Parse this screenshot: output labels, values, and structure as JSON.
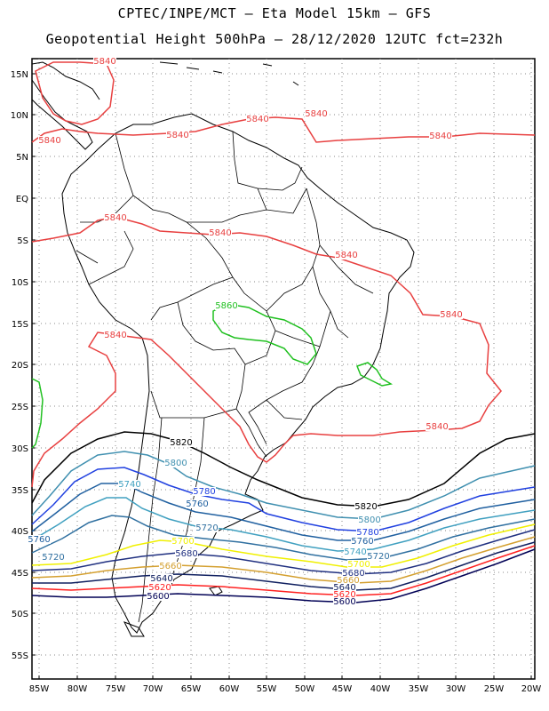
{
  "header": {
    "line1": "CPTEC/INPE/MCT –  Eta Model 15km – GFS",
    "line2": "Geopotential Height 500hPa – 28/12/2020 12UTC fct=232h"
  },
  "lat_labels": [
    "15N",
    "10N",
    "5N",
    "EQ",
    "5S",
    "10S",
    "15S",
    "20S",
    "25S",
    "30S",
    "35S",
    "40S",
    "45S",
    "50S",
    "55S"
  ],
  "lon_labels": [
    "85W",
    "80W",
    "75W",
    "70W",
    "65W",
    "60W",
    "55W",
    "50W",
    "45W",
    "40W",
    "35W",
    "30W",
    "25W",
    "20W"
  ],
  "colors": {
    "c5500": "#000080",
    "c5580": "#000000",
    "c5600": "#000055",
    "c5620": "#ff2020",
    "c5640": "#102060",
    "c5660": "#d4a030",
    "c5680": "#203080",
    "c5700": "#f0f000",
    "c5720": "#3070a0",
    "c5740": "#40a0c0",
    "c5760": "#2060a0",
    "c5780": "#2040e0",
    "c5800": "#4090b0",
    "c5820": "#000000",
    "c5840": "#e84040",
    "c5860": "#20c020",
    "land": "#000000",
    "grid": "#888888"
  },
  "contour_labels": [
    {
      "text": "5840",
      "color": "c5840"
    },
    {
      "text": "5840",
      "color": "c5840"
    },
    {
      "text": "5840",
      "color": "c5840"
    },
    {
      "text": "5840",
      "color": "c5840"
    },
    {
      "text": "5840",
      "color": "c5840"
    },
    {
      "text": "5840",
      "color": "c5840"
    },
    {
      "text": "5840",
      "color": "c5840"
    },
    {
      "text": "5840",
      "color": "c5840"
    },
    {
      "text": "5840",
      "color": "c5840"
    },
    {
      "text": "5840",
      "color": "c5840"
    },
    {
      "text": "5840",
      "color": "c5840"
    },
    {
      "text": "5840",
      "color": "c5840"
    },
    {
      "text": "5860",
      "color": "c5860"
    },
    {
      "text": "5820",
      "color": "c5820"
    },
    {
      "text": "5820",
      "color": "c5820"
    },
    {
      "text": "5800",
      "color": "c5800"
    },
    {
      "text": "5800",
      "color": "c5800"
    },
    {
      "text": "5780",
      "color": "c5780"
    },
    {
      "text": "5780",
      "color": "c5780"
    },
    {
      "text": "5760",
      "color": "c5760"
    },
    {
      "text": "5760",
      "color": "c5760"
    },
    {
      "text": "5760",
      "color": "c5760"
    },
    {
      "text": "5740",
      "color": "c5740"
    },
    {
      "text": "5740",
      "color": "c5740"
    },
    {
      "text": "5720",
      "color": "c5720"
    },
    {
      "text": "5720",
      "color": "c5720"
    },
    {
      "text": "5720",
      "color": "c5720"
    },
    {
      "text": "5700",
      "color": "c5700"
    },
    {
      "text": "5700",
      "color": "c5700"
    },
    {
      "text": "5680",
      "color": "c5680"
    },
    {
      "text": "5680",
      "color": "c5680"
    },
    {
      "text": "5660",
      "color": "c5660"
    },
    {
      "text": "5660",
      "color": "c5660"
    },
    {
      "text": "5640",
      "color": "c5640"
    },
    {
      "text": "5640",
      "color": "c5640"
    },
    {
      "text": "5620",
      "color": "c5620"
    },
    {
      "text": "5620",
      "color": "c5620"
    },
    {
      "text": "5600",
      "color": "c5600"
    },
    {
      "text": "5600",
      "color": "c5600"
    }
  ]
}
